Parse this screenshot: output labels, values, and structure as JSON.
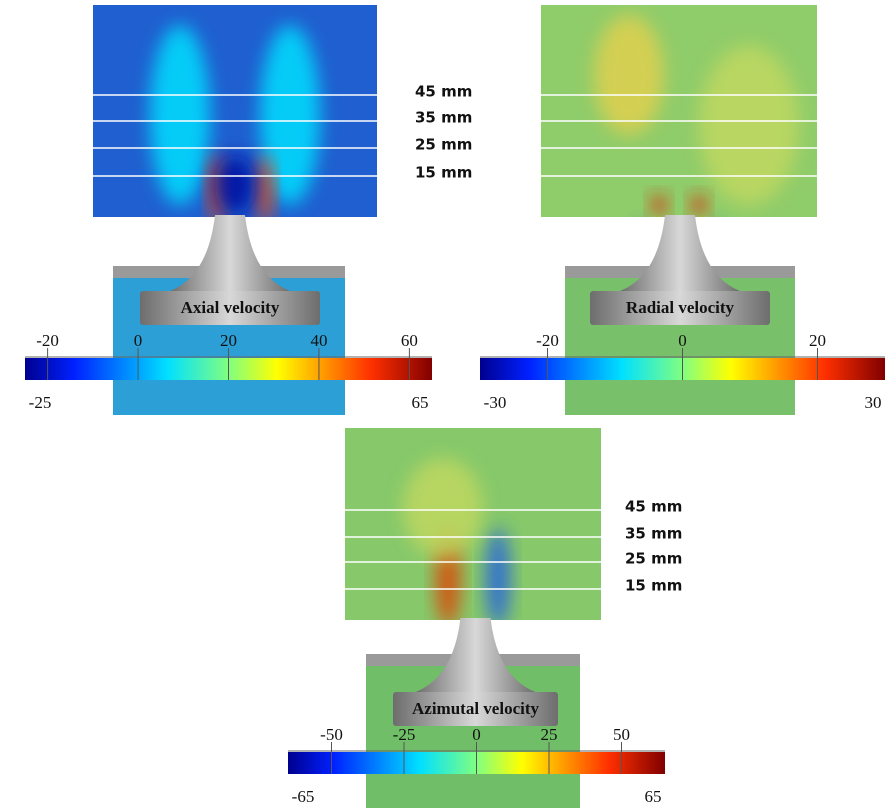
{
  "panels": [
    {
      "title": "Axial velocity",
      "levels": [
        "45 mm",
        "35 mm",
        "25 mm",
        "15 mm"
      ],
      "colorbar": {
        "range": [
          -25,
          65
        ],
        "ticks": [
          -20,
          0,
          20,
          40,
          60
        ]
      }
    },
    {
      "title": "Radial velocity",
      "colorbar": {
        "range": [
          -30,
          30
        ],
        "ticks": [
          -20,
          0,
          20
        ]
      }
    },
    {
      "title": "Azimutal velocity",
      "levels": [
        "45 mm",
        "35 mm",
        "25 mm",
        "15 mm"
      ],
      "colorbar": {
        "range": [
          -65,
          65
        ],
        "ticks": [
          -50,
          -25,
          0,
          25,
          50
        ]
      }
    }
  ]
}
